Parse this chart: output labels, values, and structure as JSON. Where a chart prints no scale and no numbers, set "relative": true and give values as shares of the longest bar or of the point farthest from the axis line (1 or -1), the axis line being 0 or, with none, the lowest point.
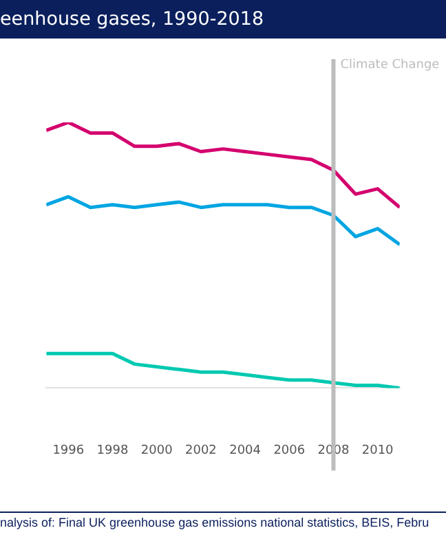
{
  "chart_data": {
    "type": "line",
    "title": "eenhouse gases, 1990-2018",
    "relative": true,
    "tick_labels": "x",
    "legend": false,
    "x": [
      1995,
      1996,
      1997,
      1998,
      1999,
      2000,
      2001,
      2002,
      2003,
      2004,
      2005,
      2006,
      2007,
      2008,
      2009,
      2010,
      2011
    ],
    "xlim": [
      1995,
      2011
    ],
    "xticks": [
      1996,
      1998,
      2000,
      2002,
      2004,
      2006,
      2008,
      2010
    ],
    "series": [
      {
        "color": "#d4006e",
        "values": [
          0.97,
          1,
          0.96,
          0.96,
          0.91,
          0.91,
          0.92,
          0.89,
          0.9,
          0.89,
          0.88,
          0.87,
          0.86,
          0.82,
          0.73,
          0.75,
          0.68
        ]
      },
      {
        "color": "#00a5e2",
        "values": [
          0.69,
          0.72,
          0.68,
          0.69,
          0.68,
          0.69,
          0.7,
          0.68,
          0.69,
          0.69,
          0.69,
          0.68,
          0.68,
          0.65,
          0.57,
          0.6,
          0.54
        ]
      },
      {
        "color": "#00c9b0",
        "values": [
          0.13,
          0.13,
          0.13,
          0.13,
          0.09,
          0.08,
          0.07,
          0.06,
          0.06,
          0.05,
          0.04,
          0.03,
          0.03,
          0.02,
          0.01,
          0.01,
          0
        ]
      }
    ],
    "ref_lines": [
      {
        "axis": "x",
        "value": 2008,
        "label": "Climate Change",
        "color": "#bdbdbd"
      }
    ],
    "annotations": [
      "nalysis of: Final UK greenhouse gas emissions national statistics, BEIS, Febru"
    ]
  }
}
